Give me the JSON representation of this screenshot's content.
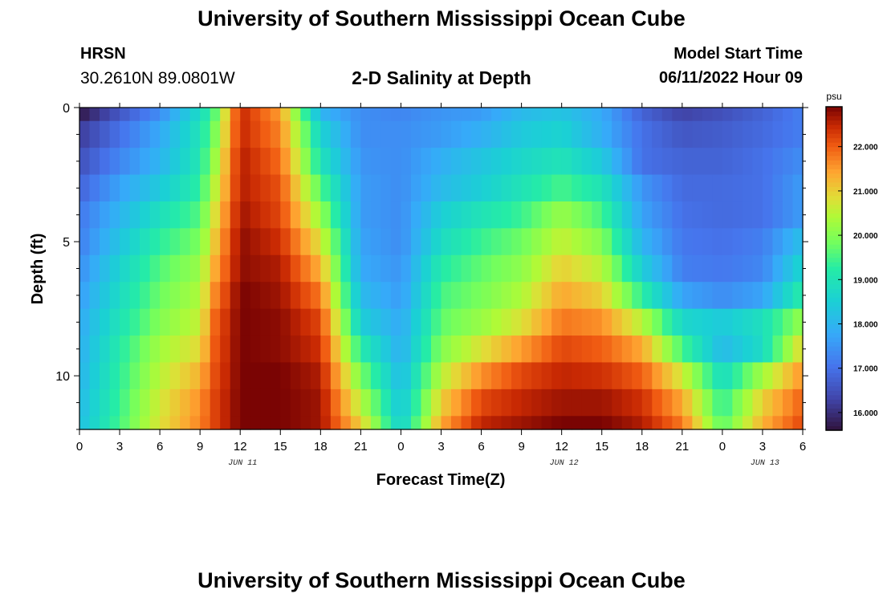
{
  "header": {
    "title": "University of Southern Mississippi Ocean Cube",
    "station": "HRSN",
    "coordinates": "30.2610N  89.0801W",
    "chart_title": "2-D Salinity at Depth",
    "model_start_label": "Model Start Time",
    "model_start_value": "06/11/2022 Hour 09"
  },
  "footer": {
    "title": "University of Southern Mississippi Ocean Cube"
  },
  "chart_data": {
    "type": "heatmap",
    "title": "2-D Salinity at Depth",
    "xlabel": "Forecast Time(Z)",
    "ylabel": "Depth (ft)",
    "x_range_hours": [
      0,
      54
    ],
    "y_range_ft": [
      0,
      12
    ],
    "x_tick_hours": [
      0,
      3,
      6,
      9,
      12,
      15,
      18,
      21,
      24,
      27,
      30,
      33,
      36,
      39,
      42,
      45,
      48,
      51,
      54
    ],
    "x_tick_labels": [
      "0",
      "3",
      "6",
      "9",
      "12",
      "15",
      "18",
      "21",
      "0",
      "3",
      "6",
      "9",
      "12",
      "15",
      "18",
      "21",
      "0",
      "3",
      "6"
    ],
    "y_ticks": [
      0,
      5,
      10
    ],
    "y_tick_labels": [
      "0",
      "5",
      "10"
    ],
    "date_labels": [
      {
        "hour": 12,
        "text": "JUN 11"
      },
      {
        "hour": 36,
        "text": "JUN 12"
      },
      {
        "hour": 51,
        "text": "JUN 13"
      }
    ],
    "colorbar": {
      "unit": "psu",
      "min": 15.6,
      "max": 22.9,
      "ticks": [
        16,
        17,
        18,
        19,
        20,
        21,
        22
      ],
      "tick_labels": [
        "16.000",
        "17.000",
        "18.000",
        "19.000",
        "20.000",
        "21.000",
        "22.000"
      ]
    },
    "time_hours": [
      0,
      3,
      6,
      9,
      10,
      12,
      15,
      18,
      21,
      24,
      27,
      30,
      33,
      36,
      39,
      42,
      45,
      48,
      51,
      54
    ],
    "depth_levels_ft": [
      0.25,
      1,
      2,
      3,
      4,
      5,
      6,
      7,
      8,
      9,
      10,
      11,
      11.75
    ],
    "salinity_psu": [
      [
        15.7,
        16.6,
        17.4,
        18.8,
        19.5,
        22.5,
        21.5,
        18.0,
        17.4,
        17.3,
        17.5,
        17.6,
        18.1,
        18.3,
        17.8,
        16.8,
        16.3,
        16.5,
        16.8,
        17.2
      ],
      [
        16.2,
        17.0,
        17.8,
        19.0,
        19.8,
        22.5,
        21.7,
        18.6,
        17.4,
        17.4,
        17.6,
        17.9,
        18.4,
        18.6,
        17.9,
        17.0,
        16.6,
        16.7,
        16.9,
        17.2
      ],
      [
        16.5,
        17.3,
        18.0,
        19.1,
        20.1,
        22.6,
        21.9,
        19.0,
        17.5,
        17.4,
        17.9,
        18.3,
        18.7,
        19.0,
        18.4,
        17.0,
        16.8,
        16.8,
        17.0,
        17.4
      ],
      [
        16.8,
        17.7,
        18.4,
        19.3,
        20.4,
        22.6,
        22.1,
        19.6,
        17.6,
        17.4,
        18.1,
        18.5,
        19.0,
        19.5,
        19.0,
        17.5,
        16.9,
        16.9,
        17.0,
        17.6
      ],
      [
        17.1,
        18.0,
        18.9,
        19.6,
        20.7,
        22.7,
        22.2,
        20.2,
        17.6,
        17.4,
        18.5,
        19.0,
        19.4,
        20.2,
        19.5,
        17.7,
        17.0,
        16.9,
        17.0,
        17.6
      ],
      [
        17.2,
        18.3,
        19.3,
        19.9,
        21.0,
        22.8,
        22.4,
        20.8,
        17.7,
        17.4,
        18.8,
        19.4,
        19.8,
        20.6,
        20.0,
        18.0,
        17.1,
        17.0,
        17.2,
        18.2
      ],
      [
        17.4,
        18.6,
        19.6,
        20.2,
        21.3,
        22.8,
        22.6,
        21.3,
        17.8,
        17.5,
        19.2,
        19.7,
        20.1,
        21.0,
        20.5,
        18.5,
        17.2,
        17.1,
        17.3,
        18.7
      ],
      [
        17.6,
        18.8,
        19.8,
        20.4,
        21.6,
        22.9,
        22.7,
        21.8,
        18.1,
        17.6,
        19.5,
        19.9,
        20.4,
        21.4,
        21.0,
        19.3,
        17.7,
        17.4,
        17.7,
        19.3
      ],
      [
        17.8,
        19.0,
        20.0,
        20.6,
        21.9,
        22.9,
        22.8,
        22.2,
        18.5,
        17.8,
        19.7,
        20.2,
        20.8,
        21.8,
        21.6,
        20.5,
        18.7,
        18.4,
        18.9,
        20.2
      ],
      [
        17.9,
        19.2,
        20.3,
        20.9,
        22.0,
        22.9,
        22.8,
        22.4,
        19.2,
        17.9,
        20.0,
        20.8,
        21.5,
        22.2,
        22.0,
        21.4,
        19.5,
        18.1,
        18.8,
        21.0
      ],
      [
        18.0,
        19.3,
        20.5,
        21.3,
        22.1,
        22.9,
        22.9,
        22.6,
        19.9,
        18.1,
        20.5,
        21.6,
        22.2,
        22.5,
        22.4,
        22.0,
        20.7,
        18.8,
        20.3,
        21.6
      ],
      [
        18.1,
        19.4,
        20.7,
        21.6,
        22.2,
        22.9,
        22.9,
        22.7,
        20.5,
        18.3,
        21.0,
        22.2,
        22.5,
        22.7,
        22.7,
        22.4,
        21.4,
        19.3,
        21.0,
        22.0
      ],
      [
        18.2,
        19.5,
        20.8,
        21.7,
        22.2,
        22.9,
        22.9,
        22.7,
        21.0,
        18.5,
        21.4,
        22.5,
        22.7,
        22.9,
        22.9,
        22.6,
        21.8,
        19.6,
        21.3,
        22.2
      ]
    ]
  }
}
